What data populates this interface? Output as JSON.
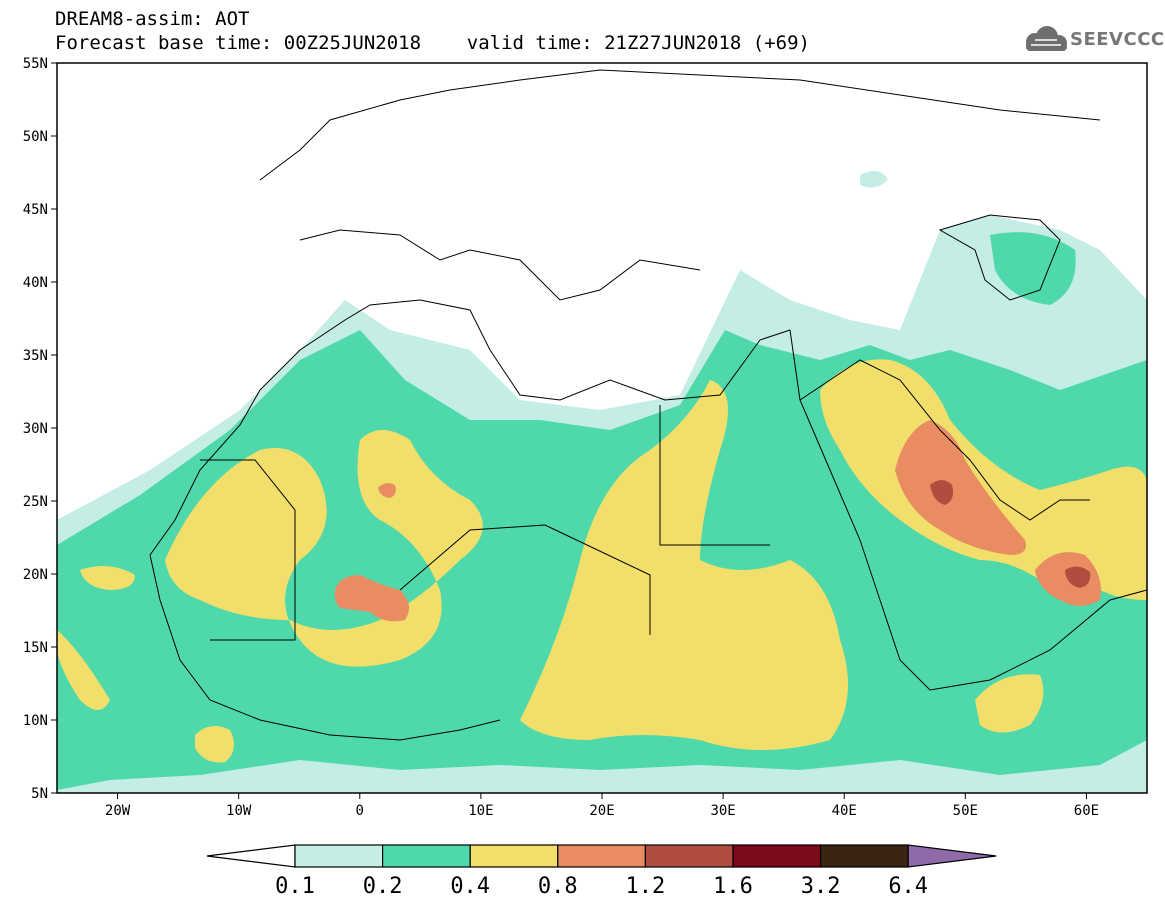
{
  "header": {
    "line1": "DREAM8-assim: AOT",
    "line2": "Forecast base time: 00Z25JUN2018    valid time: 21Z27JUN2018 (+69)"
  },
  "logo": {
    "text": "SEEVCCC",
    "icon": "cloud-icon"
  },
  "map": {
    "extent": {
      "lon": [
        -25,
        65
      ],
      "lat": [
        5,
        55
      ]
    },
    "lat_labels": [
      "55N",
      "50N",
      "45N",
      "40N",
      "35N",
      "30N",
      "25N",
      "20N",
      "15N",
      "10N",
      "5N"
    ],
    "lon_labels": [
      "20W",
      "10W",
      "0",
      "10E",
      "20E",
      "30E",
      "40E",
      "50E",
      "60E"
    ]
  },
  "colorbar": {
    "levels": [
      "0.1",
      "0.2",
      "0.4",
      "0.8",
      "1.2",
      "1.6",
      "3.2",
      "6.4"
    ],
    "colors": {
      "c1": "#c4ede6",
      "c2": "#4fd9ab",
      "c3": "#f2df6b",
      "c4": "#e98c62",
      "c5": "#b24c3e",
      "c6": "#7b0a1c",
      "c7": "#3b2512",
      "over": "#8e6aa9",
      "under": "#ffffff"
    }
  }
}
